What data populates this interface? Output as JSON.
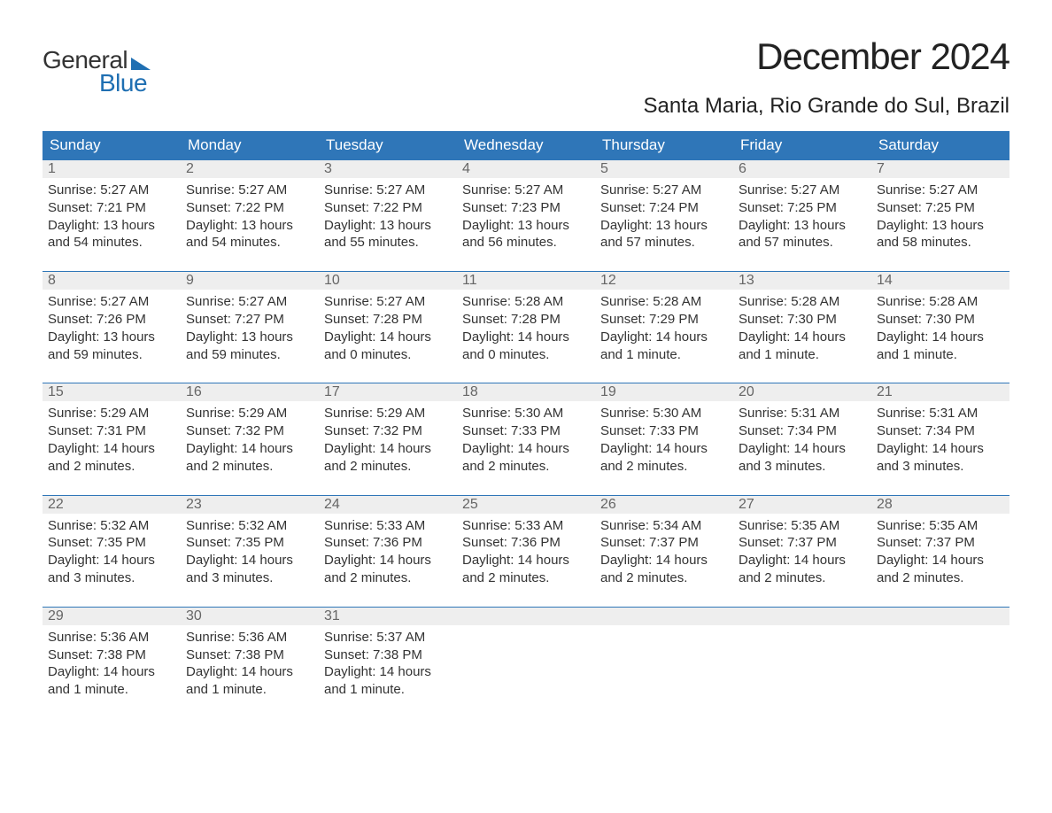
{
  "colors": {
    "header_bg": "#2f76b8",
    "header_text": "#ffffff",
    "day_border_top": "#2f76b8",
    "day_num_bg": "#eeeeee",
    "day_num_text": "#666666",
    "body_text": "#333333",
    "logo_blue": "#1f6fb2",
    "background": "#ffffff"
  },
  "typography": {
    "title_fontsize": 42,
    "location_fontsize": 24,
    "header_fontsize": 17,
    "body_fontsize": 15,
    "daynum_fontsize": 16,
    "logo_fontsize": 28
  },
  "logo": {
    "line1": "General",
    "line2": "Blue"
  },
  "title": "December 2024",
  "location": "Santa Maria, Rio Grande do Sul, Brazil",
  "weekdays": [
    "Sunday",
    "Monday",
    "Tuesday",
    "Wednesday",
    "Thursday",
    "Friday",
    "Saturday"
  ],
  "weeks": [
    [
      {
        "n": "1",
        "sunrise": "Sunrise: 5:27 AM",
        "sunset": "Sunset: 7:21 PM",
        "dl1": "Daylight: 13 hours",
        "dl2": "and 54 minutes."
      },
      {
        "n": "2",
        "sunrise": "Sunrise: 5:27 AM",
        "sunset": "Sunset: 7:22 PM",
        "dl1": "Daylight: 13 hours",
        "dl2": "and 54 minutes."
      },
      {
        "n": "3",
        "sunrise": "Sunrise: 5:27 AM",
        "sunset": "Sunset: 7:22 PM",
        "dl1": "Daylight: 13 hours",
        "dl2": "and 55 minutes."
      },
      {
        "n": "4",
        "sunrise": "Sunrise: 5:27 AM",
        "sunset": "Sunset: 7:23 PM",
        "dl1": "Daylight: 13 hours",
        "dl2": "and 56 minutes."
      },
      {
        "n": "5",
        "sunrise": "Sunrise: 5:27 AM",
        "sunset": "Sunset: 7:24 PM",
        "dl1": "Daylight: 13 hours",
        "dl2": "and 57 minutes."
      },
      {
        "n": "6",
        "sunrise": "Sunrise: 5:27 AM",
        "sunset": "Sunset: 7:25 PM",
        "dl1": "Daylight: 13 hours",
        "dl2": "and 57 minutes."
      },
      {
        "n": "7",
        "sunrise": "Sunrise: 5:27 AM",
        "sunset": "Sunset: 7:25 PM",
        "dl1": "Daylight: 13 hours",
        "dl2": "and 58 minutes."
      }
    ],
    [
      {
        "n": "8",
        "sunrise": "Sunrise: 5:27 AM",
        "sunset": "Sunset: 7:26 PM",
        "dl1": "Daylight: 13 hours",
        "dl2": "and 59 minutes."
      },
      {
        "n": "9",
        "sunrise": "Sunrise: 5:27 AM",
        "sunset": "Sunset: 7:27 PM",
        "dl1": "Daylight: 13 hours",
        "dl2": "and 59 minutes."
      },
      {
        "n": "10",
        "sunrise": "Sunrise: 5:27 AM",
        "sunset": "Sunset: 7:28 PM",
        "dl1": "Daylight: 14 hours",
        "dl2": "and 0 minutes."
      },
      {
        "n": "11",
        "sunrise": "Sunrise: 5:28 AM",
        "sunset": "Sunset: 7:28 PM",
        "dl1": "Daylight: 14 hours",
        "dl2": "and 0 minutes."
      },
      {
        "n": "12",
        "sunrise": "Sunrise: 5:28 AM",
        "sunset": "Sunset: 7:29 PM",
        "dl1": "Daylight: 14 hours",
        "dl2": "and 1 minute."
      },
      {
        "n": "13",
        "sunrise": "Sunrise: 5:28 AM",
        "sunset": "Sunset: 7:30 PM",
        "dl1": "Daylight: 14 hours",
        "dl2": "and 1 minute."
      },
      {
        "n": "14",
        "sunrise": "Sunrise: 5:28 AM",
        "sunset": "Sunset: 7:30 PM",
        "dl1": "Daylight: 14 hours",
        "dl2": "and 1 minute."
      }
    ],
    [
      {
        "n": "15",
        "sunrise": "Sunrise: 5:29 AM",
        "sunset": "Sunset: 7:31 PM",
        "dl1": "Daylight: 14 hours",
        "dl2": "and 2 minutes."
      },
      {
        "n": "16",
        "sunrise": "Sunrise: 5:29 AM",
        "sunset": "Sunset: 7:32 PM",
        "dl1": "Daylight: 14 hours",
        "dl2": "and 2 minutes."
      },
      {
        "n": "17",
        "sunrise": "Sunrise: 5:29 AM",
        "sunset": "Sunset: 7:32 PM",
        "dl1": "Daylight: 14 hours",
        "dl2": "and 2 minutes."
      },
      {
        "n": "18",
        "sunrise": "Sunrise: 5:30 AM",
        "sunset": "Sunset: 7:33 PM",
        "dl1": "Daylight: 14 hours",
        "dl2": "and 2 minutes."
      },
      {
        "n": "19",
        "sunrise": "Sunrise: 5:30 AM",
        "sunset": "Sunset: 7:33 PM",
        "dl1": "Daylight: 14 hours",
        "dl2": "and 2 minutes."
      },
      {
        "n": "20",
        "sunrise": "Sunrise: 5:31 AM",
        "sunset": "Sunset: 7:34 PM",
        "dl1": "Daylight: 14 hours",
        "dl2": "and 3 minutes."
      },
      {
        "n": "21",
        "sunrise": "Sunrise: 5:31 AM",
        "sunset": "Sunset: 7:34 PM",
        "dl1": "Daylight: 14 hours",
        "dl2": "and 3 minutes."
      }
    ],
    [
      {
        "n": "22",
        "sunrise": "Sunrise: 5:32 AM",
        "sunset": "Sunset: 7:35 PM",
        "dl1": "Daylight: 14 hours",
        "dl2": "and 3 minutes."
      },
      {
        "n": "23",
        "sunrise": "Sunrise: 5:32 AM",
        "sunset": "Sunset: 7:35 PM",
        "dl1": "Daylight: 14 hours",
        "dl2": "and 3 minutes."
      },
      {
        "n": "24",
        "sunrise": "Sunrise: 5:33 AM",
        "sunset": "Sunset: 7:36 PM",
        "dl1": "Daylight: 14 hours",
        "dl2": "and 2 minutes."
      },
      {
        "n": "25",
        "sunrise": "Sunrise: 5:33 AM",
        "sunset": "Sunset: 7:36 PM",
        "dl1": "Daylight: 14 hours",
        "dl2": "and 2 minutes."
      },
      {
        "n": "26",
        "sunrise": "Sunrise: 5:34 AM",
        "sunset": "Sunset: 7:37 PM",
        "dl1": "Daylight: 14 hours",
        "dl2": "and 2 minutes."
      },
      {
        "n": "27",
        "sunrise": "Sunrise: 5:35 AM",
        "sunset": "Sunset: 7:37 PM",
        "dl1": "Daylight: 14 hours",
        "dl2": "and 2 minutes."
      },
      {
        "n": "28",
        "sunrise": "Sunrise: 5:35 AM",
        "sunset": "Sunset: 7:37 PM",
        "dl1": "Daylight: 14 hours",
        "dl2": "and 2 minutes."
      }
    ],
    [
      {
        "n": "29",
        "sunrise": "Sunrise: 5:36 AM",
        "sunset": "Sunset: 7:38 PM",
        "dl1": "Daylight: 14 hours",
        "dl2": "and 1 minute."
      },
      {
        "n": "30",
        "sunrise": "Sunrise: 5:36 AM",
        "sunset": "Sunset: 7:38 PM",
        "dl1": "Daylight: 14 hours",
        "dl2": "and 1 minute."
      },
      {
        "n": "31",
        "sunrise": "Sunrise: 5:37 AM",
        "sunset": "Sunset: 7:38 PM",
        "dl1": "Daylight: 14 hours",
        "dl2": "and 1 minute."
      },
      {
        "empty": true
      },
      {
        "empty": true
      },
      {
        "empty": true
      },
      {
        "empty": true
      }
    ]
  ]
}
